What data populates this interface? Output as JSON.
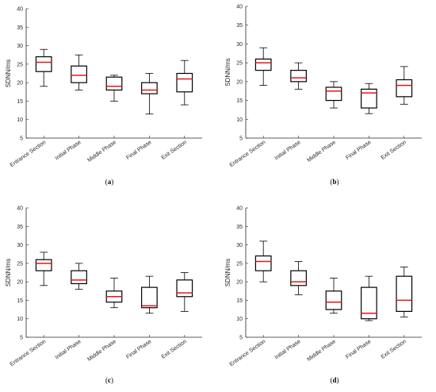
{
  "chart_data": [
    {
      "type": "box",
      "panel_label": "(a)",
      "ylabel": "SDNN/ms",
      "ylim": [
        5,
        40
      ],
      "yticks": [
        5,
        10,
        15,
        20,
        25,
        30,
        35,
        40
      ],
      "categories": [
        "Entrance Section",
        "Initial Phase",
        "Middle Phase",
        "Final Phase",
        "Exit Section"
      ],
      "boxes": [
        {
          "min": 19,
          "q1": 23,
          "median": 25.5,
          "q3": 27,
          "max": 29
        },
        {
          "min": 18,
          "q1": 20,
          "median": 22,
          "q3": 24.5,
          "max": 27.5
        },
        {
          "min": 15,
          "q1": 18,
          "median": 19,
          "q3": 21.5,
          "max": 22
        },
        {
          "min": 11.5,
          "q1": 17,
          "median": 18,
          "q3": 20,
          "max": 22.5
        },
        {
          "min": 14,
          "q1": 17.5,
          "median": 21,
          "q3": 22.5,
          "max": 26
        }
      ]
    },
    {
      "type": "box",
      "panel_label": "(b)",
      "ylabel": "SDNN/ms",
      "ylim": [
        5,
        40
      ],
      "yticks": [
        5,
        10,
        15,
        20,
        25,
        30,
        35,
        40
      ],
      "categories": [
        "Entrance Section",
        "Initial Phase",
        "Middle Phase",
        "Final Phase",
        "Exit Section"
      ],
      "boxes": [
        {
          "min": 19,
          "q1": 23,
          "median": 25,
          "q3": 26,
          "max": 29
        },
        {
          "min": 18,
          "q1": 20,
          "median": 21,
          "q3": 23,
          "max": 25
        },
        {
          "min": 13,
          "q1": 15,
          "median": 17.5,
          "q3": 18.5,
          "max": 20
        },
        {
          "min": 11.5,
          "q1": 13,
          "median": 17,
          "q3": 18,
          "max": 19.5
        },
        {
          "min": 14,
          "q1": 16,
          "median": 19,
          "q3": 20.5,
          "max": 24
        }
      ]
    },
    {
      "type": "box",
      "panel_label": "(c)",
      "ylabel": "SDNN/ms",
      "ylim": [
        5,
        40
      ],
      "yticks": [
        5,
        10,
        15,
        20,
        25,
        30,
        35,
        40
      ],
      "categories": [
        "Entrance Section",
        "Initial Phase",
        "Middle Phase",
        "Final Phase",
        "Exit Section"
      ],
      "boxes": [
        {
          "min": 19,
          "q1": 23,
          "median": 25,
          "q3": 26,
          "max": 28
        },
        {
          "min": 18,
          "q1": 19.5,
          "median": 20.5,
          "q3": 23,
          "max": 25
        },
        {
          "min": 13,
          "q1": 14.5,
          "median": 16,
          "q3": 17.5,
          "max": 21
        },
        {
          "min": 11.5,
          "q1": 13,
          "median": 13.5,
          "q3": 18.5,
          "max": 21.5
        },
        {
          "min": 12,
          "q1": 16,
          "median": 17,
          "q3": 20.5,
          "max": 22.5
        }
      ]
    },
    {
      "type": "box",
      "panel_label": "(d)",
      "ylabel": "SDNN/ms",
      "ylim": [
        5,
        40
      ],
      "yticks": [
        5,
        10,
        15,
        20,
        25,
        30,
        35,
        40
      ],
      "categories": [
        "Entrance Section",
        "Initial Phase",
        "Middle Phase",
        "Final Phase",
        "Exit Section"
      ],
      "boxes": [
        {
          "min": 20,
          "q1": 23,
          "median": 25.5,
          "q3": 27,
          "max": 31
        },
        {
          "min": 16.5,
          "q1": 19,
          "median": 20,
          "q3": 23,
          "max": 25.5
        },
        {
          "min": 11.5,
          "q1": 12.5,
          "median": 14.5,
          "q3": 17.5,
          "max": 21
        },
        {
          "min": 9.5,
          "q1": 10,
          "median": 11.5,
          "q3": 18.5,
          "max": 21.5
        },
        {
          "min": 10.5,
          "q1": 12,
          "median": 15,
          "q3": 21.5,
          "max": 24
        }
      ]
    }
  ],
  "colors": {
    "median": "#e8141b",
    "box": "#000000",
    "axis": "#262626"
  }
}
